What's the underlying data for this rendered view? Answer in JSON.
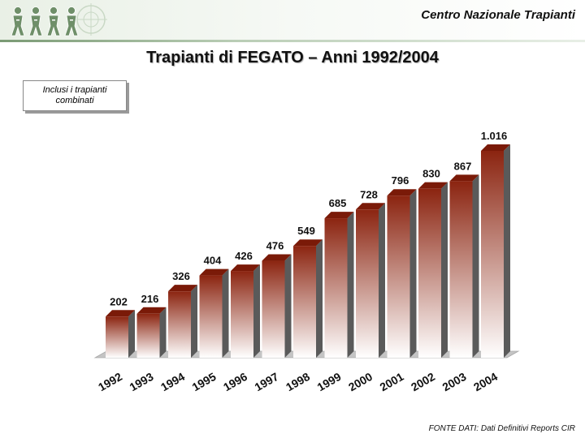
{
  "header": {
    "org_name": "Centro Nazionale Trapianti"
  },
  "page": {
    "title": "Trapianti di FEGATO – Anni 1992/2004",
    "note_line1": "Inclusi i trapianti",
    "note_line2": "combinati",
    "source": "FONTE DATI: Dati Definitivi Reports CIR"
  },
  "colors": {
    "bar_top": "#8b2410",
    "bar_bottom": "#ffffff",
    "bar_side": "#5a5a5a",
    "bar_cap": "#7a1a08",
    "floor": "#c4c4c4"
  },
  "chart_data": {
    "type": "bar",
    "categories": [
      "1992",
      "1993",
      "1994",
      "1995",
      "1996",
      "1997",
      "1998",
      "1999",
      "2000",
      "2001",
      "2002",
      "2003",
      "2004"
    ],
    "values": [
      202,
      216,
      326,
      404,
      426,
      476,
      549,
      685,
      728,
      796,
      830,
      867,
      1016
    ],
    "data_labels": [
      "202",
      "216",
      "326",
      "404",
      "426",
      "476",
      "549",
      "685",
      "728",
      "796",
      "830",
      "867",
      "1.016"
    ],
    "title": "",
    "xlabel": "",
    "ylabel": "",
    "ylim": [
      0,
      1016
    ],
    "grid": false,
    "legend": "none",
    "style": "3d"
  }
}
